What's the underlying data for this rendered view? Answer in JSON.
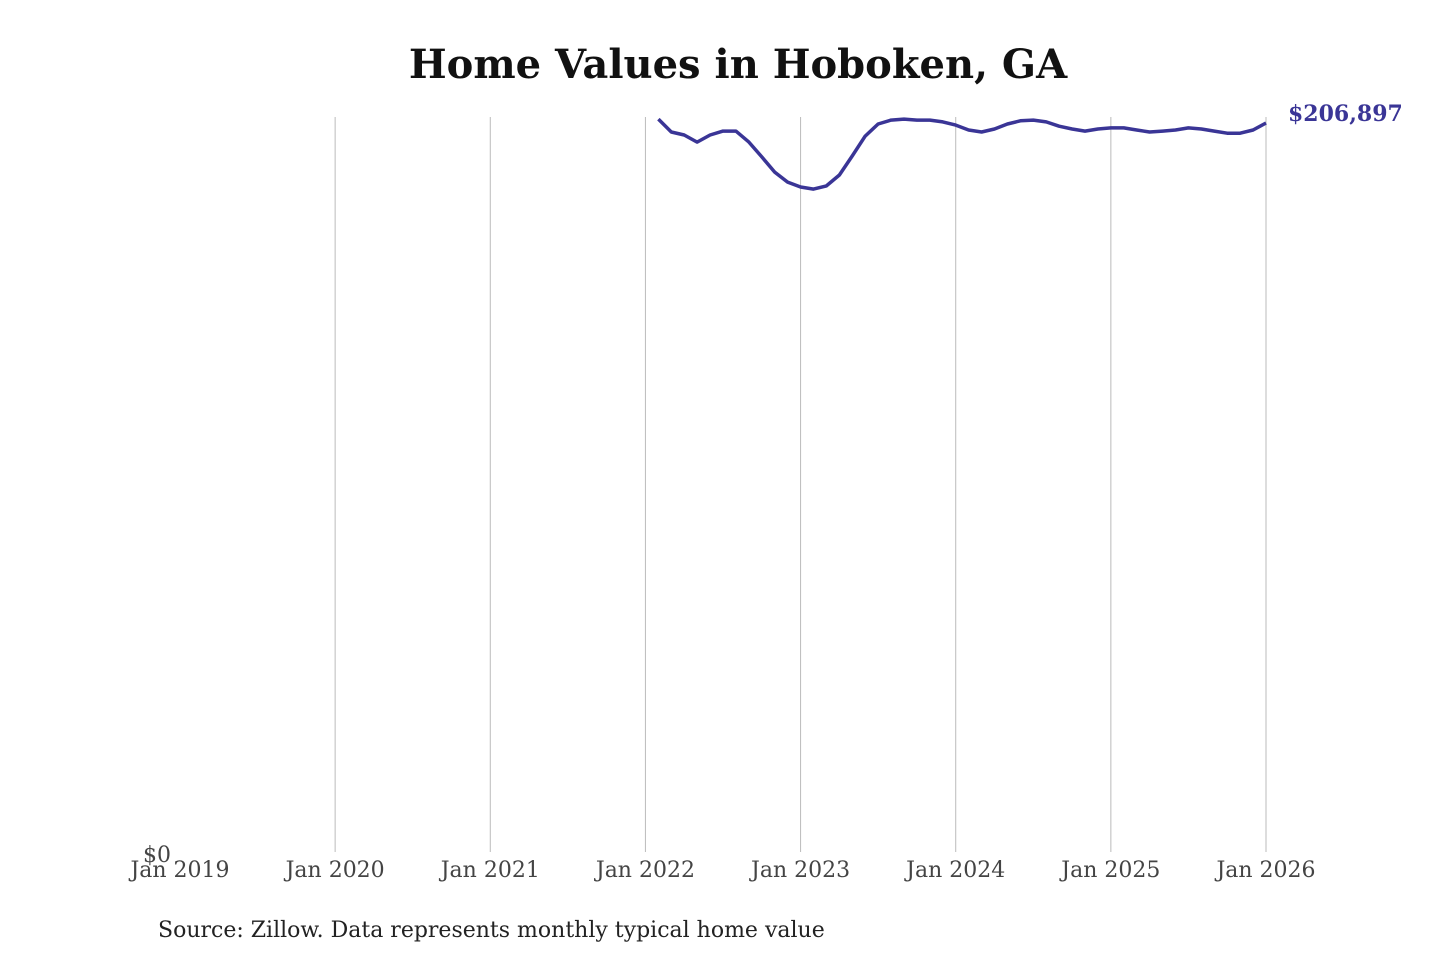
{
  "chart_data": {
    "type": "line",
    "title": "Home Values in Hoboken, GA",
    "source": "Source: Zillow. Data represents monthly typical home value",
    "x": [
      "2022-02",
      "2022-03",
      "2022-04",
      "2022-05",
      "2022-06",
      "2022-07",
      "2022-08",
      "2022-09",
      "2022-10",
      "2022-11",
      "2022-12",
      "2023-01",
      "2023-02",
      "2023-03",
      "2023-04",
      "2023-05",
      "2023-06",
      "2023-07",
      "2023-08",
      "2023-09",
      "2023-10",
      "2023-11",
      "2023-12",
      "2024-01",
      "2024-02",
      "2024-03",
      "2024-04",
      "2024-05",
      "2024-06",
      "2024-07",
      "2024-08",
      "2024-09",
      "2024-10",
      "2024-11",
      "2024-12",
      "2025-01",
      "2025-02",
      "2025-03",
      "2025-04",
      "2025-05",
      "2025-06",
      "2025-07",
      "2025-08",
      "2025-09",
      "2025-10",
      "2025-11",
      "2025-12",
      "2026-01"
    ],
    "series": [
      {
        "name": "Home value",
        "color": "#3a3596",
        "values": [
          208000,
          204350,
          203500,
          201500,
          203500,
          204600,
          204600,
          201500,
          197300,
          193000,
          190200,
          188800,
          188200,
          189100,
          192200,
          197600,
          203200,
          206600,
          207700,
          208000,
          207700,
          207700,
          207200,
          206300,
          204900,
          204350,
          205200,
          206600,
          207500,
          207700,
          207200,
          206000,
          205200,
          204600,
          205200,
          205500,
          205500,
          204900,
          204350,
          204600,
          204900,
          205500,
          205200,
          204600,
          204000,
          204000,
          204900,
          206897
        ],
        "value_labels": [
          null,
          null,
          null,
          null,
          null,
          null,
          null,
          null,
          null,
          null,
          null,
          null,
          null,
          null,
          null,
          null,
          null,
          null,
          null,
          null,
          null,
          null,
          null,
          null,
          null,
          null,
          null,
          null,
          null,
          null,
          null,
          null,
          null,
          null,
          null,
          null,
          null,
          null,
          null,
          null,
          null,
          null,
          null,
          null,
          null,
          null,
          null,
          "$206,897"
        ]
      }
    ],
    "xlim": [
      "2019-01",
      "2026-01"
    ],
    "xticks": [
      {
        "value": "2019-01",
        "label": "Jan 2019"
      },
      {
        "value": "2020-01",
        "label": "Jan 2020"
      },
      {
        "value": "2021-01",
        "label": "Jan 2021"
      },
      {
        "value": "2022-01",
        "label": "Jan 2022"
      },
      {
        "value": "2023-01",
        "label": "Jan 2023"
      },
      {
        "value": "2024-01",
        "label": "Jan 2024"
      },
      {
        "value": "2025-01",
        "label": "Jan 2025"
      },
      {
        "value": "2026-01",
        "label": "Jan 2026"
      }
    ],
    "ylim": [
      0,
      210000
    ],
    "yticks": [
      {
        "value": 0,
        "label": "$0"
      }
    ],
    "grid": true
  }
}
